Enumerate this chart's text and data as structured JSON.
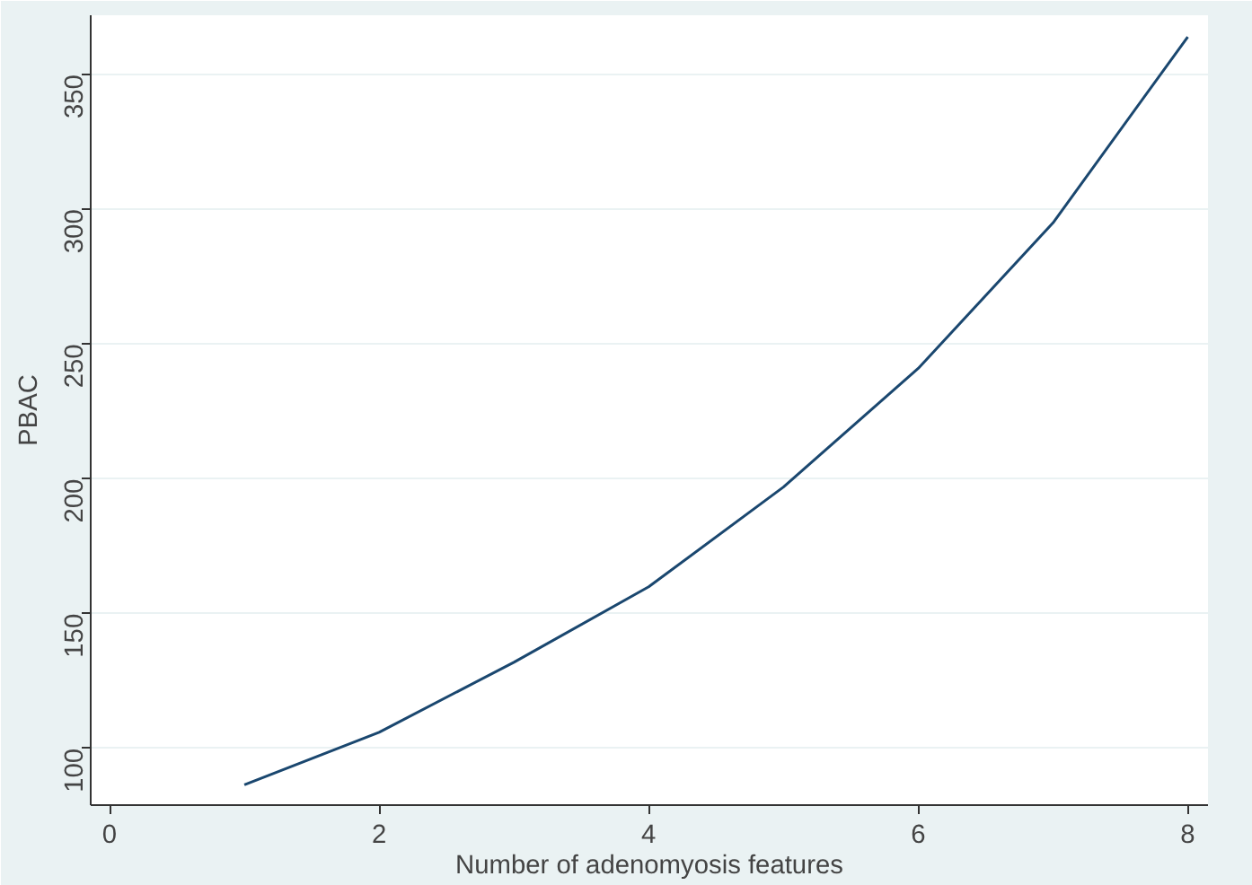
{
  "chart_data": {
    "type": "line",
    "xlabel": "Number of adenomyosis features",
    "ylabel": "PBAC",
    "x": [
      1,
      2,
      3,
      4,
      5,
      6,
      7,
      8
    ],
    "series": [
      {
        "color": "#1a476f",
        "values": [
          86.5,
          106,
          132,
          160,
          197,
          241,
          295,
          364
        ]
      }
    ],
    "xlim": [
      -0.14,
      8.15
    ],
    "ylim": [
      79,
      372
    ],
    "xticks": [
      0,
      2,
      4,
      6,
      8
    ],
    "yticks": [
      100,
      150,
      200,
      250,
      300,
      350
    ],
    "grid": "y",
    "marker": "none",
    "line_style": "solid"
  }
}
